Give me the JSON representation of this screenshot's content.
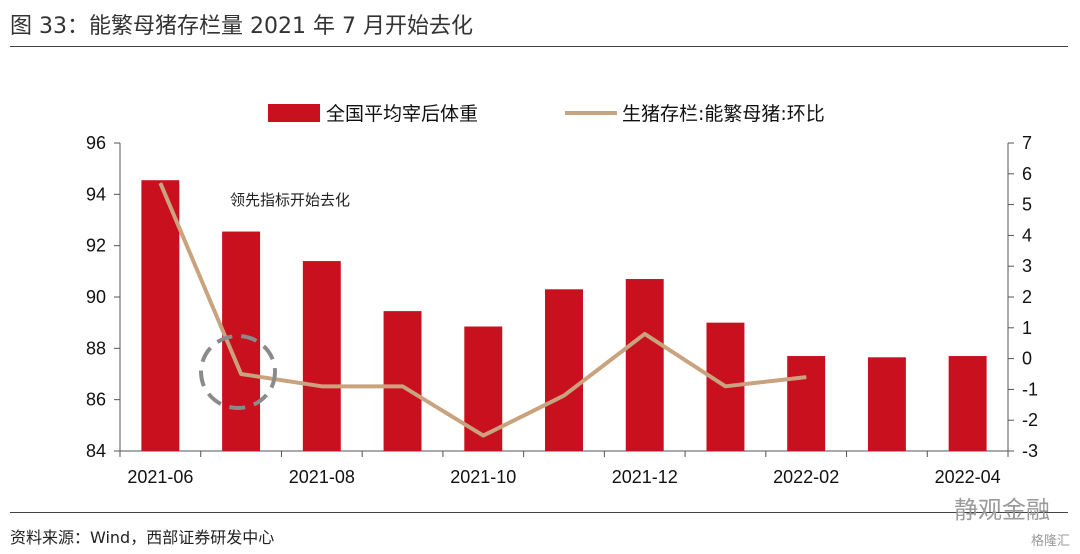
{
  "title": "图 33：能繁母猪存栏量 2021 年 7 月开始去化",
  "source": "资料来源：Wind，西部证券研发中心",
  "watermark": {
    "main": "静观金融",
    "sub": "格隆汇"
  },
  "chart_data": {
    "type": "bar+line",
    "categories": [
      "2021-06",
      "2021-07",
      "2021-08",
      "2021-09",
      "2021-10",
      "2021-11",
      "2021-12",
      "2022-01",
      "2022-02",
      "2022-03",
      "2022-04"
    ],
    "x_tick_labels": [
      "2021-06",
      "2021-08",
      "2021-10",
      "2021-12",
      "2022-02",
      "2022-04"
    ],
    "series": [
      {
        "name": "全国平均宰后体重",
        "type": "bar",
        "axis": "left",
        "color": "#c8101e",
        "values": [
          94.55,
          92.55,
          91.4,
          89.45,
          88.85,
          90.3,
          90.7,
          89.0,
          87.7,
          87.65,
          87.7
        ]
      },
      {
        "name": "生猪存栏:能繁母猪:环比",
        "type": "line",
        "axis": "right",
        "color": "#c9a27e",
        "values": [
          5.7,
          -0.5,
          -0.9,
          -0.9,
          -2.5,
          -1.2,
          0.8,
          -0.9,
          -0.6,
          null,
          null
        ]
      }
    ],
    "y_left": {
      "min": 84,
      "max": 96,
      "ticks": [
        84,
        86,
        88,
        90,
        92,
        94,
        96
      ]
    },
    "y_right": {
      "min": -3,
      "max": 7,
      "ticks": [
        -3,
        -2,
        -1,
        0,
        1,
        2,
        3,
        4,
        5,
        6,
        7
      ]
    },
    "annotation": {
      "text": "领先指标开始去化"
    },
    "legend_position": "top"
  }
}
